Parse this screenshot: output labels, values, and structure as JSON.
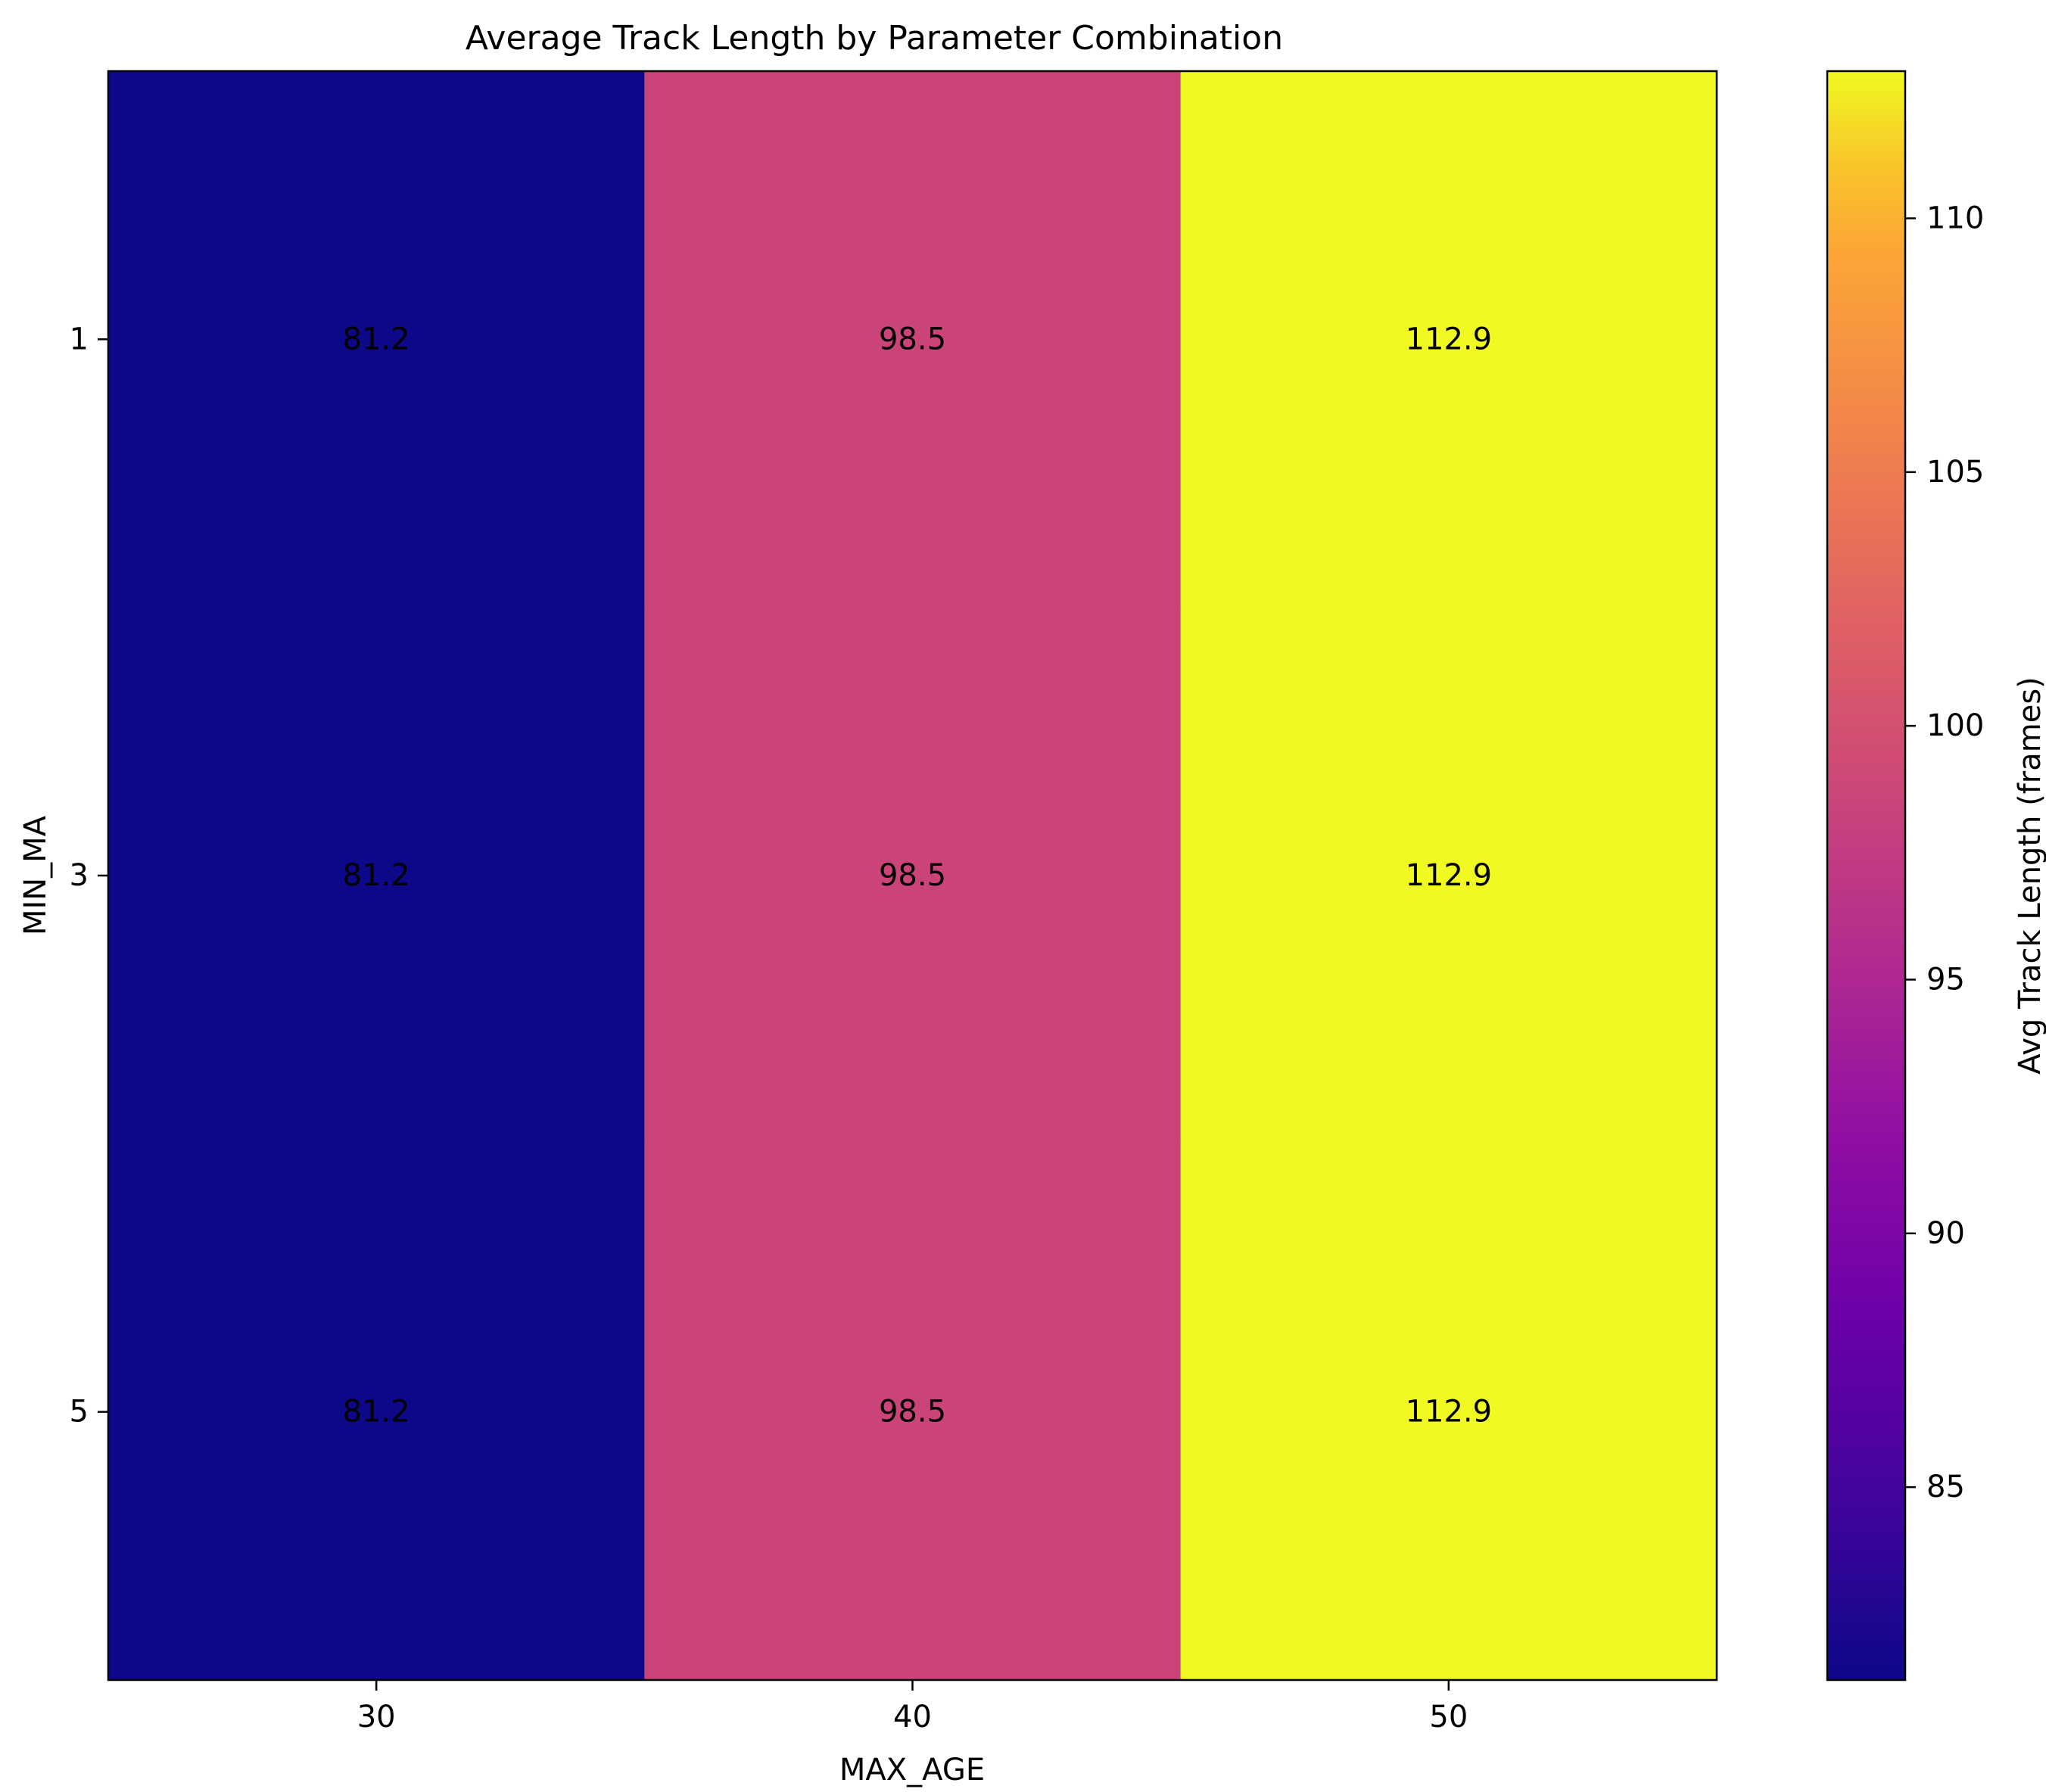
{
  "chart_data": {
    "type": "heatmap",
    "title": "Average Track Length by Parameter Combination",
    "xlabel": "MAX_AGE",
    "ylabel": "MIN_MA",
    "x_categories": [
      "30",
      "40",
      "50"
    ],
    "y_categories": [
      "1",
      "3",
      "5"
    ],
    "values": [
      [
        81.2,
        98.5,
        112.9
      ],
      [
        81.2,
        98.5,
        112.9
      ],
      [
        81.2,
        98.5,
        112.9
      ]
    ],
    "cell_labels": [
      [
        "81.2",
        "98.5",
        "112.9"
      ],
      [
        "81.2",
        "98.5",
        "112.9"
      ],
      [
        "81.2",
        "98.5",
        "112.9"
      ]
    ],
    "colormap": "plasma",
    "colorbar": {
      "label": "Avg Track Length (frames)",
      "vmin": 81.2,
      "vmax": 112.9,
      "ticks": [
        "85",
        "90",
        "95",
        "100",
        "105",
        "110"
      ],
      "tick_values": [
        85,
        90,
        95,
        100,
        105,
        110
      ]
    },
    "grid": false
  }
}
